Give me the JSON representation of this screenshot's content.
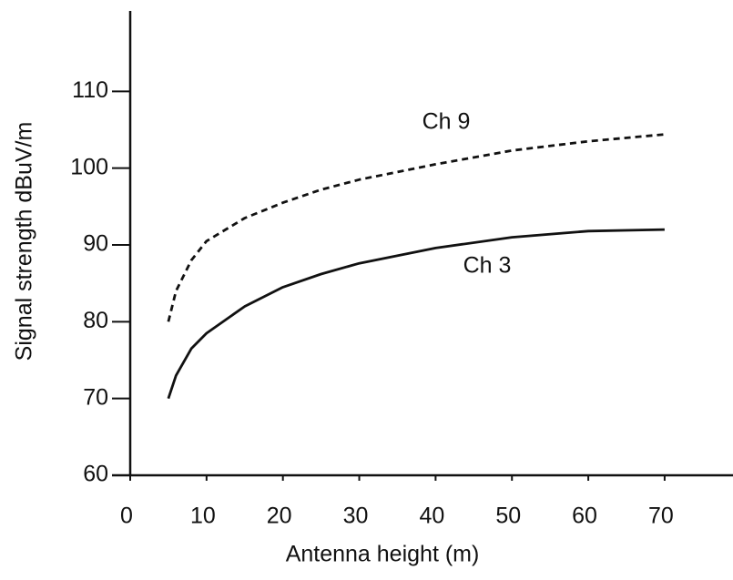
{
  "chart_data": {
    "type": "line",
    "x_label": "Antenna height (m)",
    "y_label": "Signal strength dBuV/m",
    "x": [
      5,
      6,
      8,
      10,
      15,
      20,
      25,
      30,
      40,
      50,
      60,
      70
    ],
    "series": [
      {
        "name": "Ch 9",
        "color": "#111111",
        "dashed": true,
        "values": [
          80,
          84,
          88,
          90.5,
          93.5,
          95.5,
          97.2,
          98.5,
          100.5,
          102.3,
          103.5,
          104.4
        ]
      },
      {
        "name": "Ch 3",
        "color": "#111111",
        "dashed": false,
        "values": [
          70,
          73,
          76.5,
          78.5,
          82,
          84.5,
          86.2,
          87.6,
          89.6,
          91,
          91.8,
          92
        ]
      }
    ],
    "xlim": [
      0,
      78
    ],
    "xticks": [
      0,
      10,
      20,
      30,
      40,
      50,
      60,
      70
    ],
    "ylim": [
      60,
      120
    ],
    "yticks": [
      60,
      70,
      80,
      90,
      100,
      110
    ],
    "grid": false,
    "legend": "none"
  }
}
